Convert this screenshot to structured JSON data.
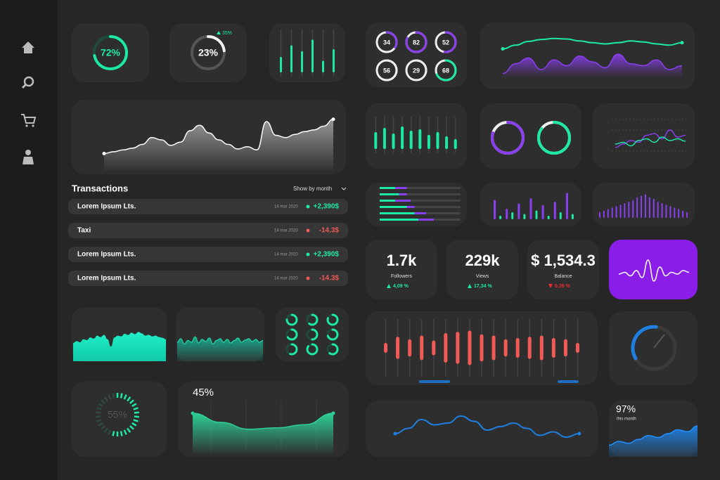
{
  "gauges": [
    {
      "value": 72,
      "label": "72%"
    },
    {
      "value": 23,
      "label": "23%",
      "change": {
        "value": 35,
        "label": "35%"
      }
    }
  ],
  "rings": [
    34,
    82,
    52,
    56,
    29,
    68
  ],
  "mini_bars": [
    40,
    70,
    55,
    85,
    30,
    60
  ],
  "top_wave": {
    "green": [
      30,
      45,
      60,
      68,
      72,
      70,
      62,
      55,
      50,
      55,
      62,
      58,
      50,
      45,
      55
    ],
    "purple": [
      10,
      35,
      50,
      20,
      45,
      30,
      55,
      40,
      25,
      60,
      35,
      30,
      45,
      20,
      30
    ]
  },
  "white_wave": [
    10,
    14,
    18,
    22,
    30,
    45,
    40,
    28,
    35,
    60,
    72,
    55,
    40,
    30,
    20,
    25,
    18,
    80,
    50,
    45,
    52,
    58,
    62,
    70,
    85
  ],
  "green_bars": [
    60,
    75,
    55,
    80,
    65,
    70,
    50,
    60,
    45,
    35
  ],
  "double_rings": [
    80,
    85
  ],
  "multi_line": {
    "green": [
      30,
      35,
      25,
      40,
      45,
      35,
      50,
      40,
      45,
      38
    ],
    "purple": [
      20,
      30,
      40,
      35,
      55,
      60,
      45,
      70,
      50,
      55
    ]
  },
  "transactions": {
    "title": "Transactions",
    "filter": "Show by month",
    "rows": [
      {
        "name": "Lorem Ipsum Lts.",
        "date": "14 mar 2020",
        "amount": "+2,390$",
        "color": "#1de9a6"
      },
      {
        "name": "Taxi",
        "date": "14 mar 2020",
        "amount": "-14.3$",
        "color": "#f25a55"
      },
      {
        "name": "Lorem Ipsum Lts.",
        "date": "14 mar 2020",
        "amount": "+2,390$",
        "color": "#1de9a6"
      },
      {
        "name": "Lorem Ipsum Lts.",
        "date": "14 mar 2020",
        "amount": "-14.3$",
        "color": "#f25a55"
      }
    ]
  },
  "h_bars": {
    "green": [
      20,
      25,
      20,
      35,
      45,
      50
    ],
    "purple": [
      15,
      10,
      20,
      10,
      15,
      20
    ]
  },
  "purple_bars": {
    "purple": [
      55,
      30,
      45,
      60,
      40,
      50,
      75
    ],
    "green": [
      10,
      20,
      15,
      25,
      10,
      20,
      15
    ]
  },
  "thin_bars": [
    20,
    25,
    30,
    35,
    40,
    45,
    50,
    55,
    60,
    70,
    75,
    80,
    70,
    65,
    55,
    50,
    45,
    40,
    35,
    30,
    25,
    20
  ],
  "stats": [
    {
      "value": "1.7k",
      "label": "Followers",
      "change": "4,09 %",
      "trend": "up",
      "color": "#1de9a6"
    },
    {
      "value": "229k",
      "label": "Views",
      "change": "17,34 %",
      "trend": "up",
      "color": "#1de9a6"
    },
    {
      "value": "$ 1,534.3",
      "label": "Balance",
      "change": "0,39 %",
      "trend": "down",
      "color": "#f02d2d"
    }
  ],
  "purple_wave": [
    40,
    45,
    35,
    50,
    30,
    80,
    20,
    60,
    35,
    45,
    40,
    50,
    45
  ],
  "green_area": [
    50,
    55,
    52,
    60,
    58,
    65,
    62,
    70,
    66,
    72,
    60,
    40,
    65,
    70,
    68,
    75,
    72,
    78,
    74,
    80,
    76,
    70,
    72,
    68,
    70,
    66,
    64,
    60
  ],
  "teal_area": [
    50,
    60,
    45,
    55,
    50,
    65,
    48,
    58,
    52,
    62,
    45,
    55,
    60,
    50,
    58,
    48,
    55,
    62,
    50,
    56,
    60,
    52,
    58,
    50,
    55
  ],
  "ring_grid": [
    75,
    60,
    80,
    65,
    50,
    70,
    55,
    85,
    60
  ],
  "red_candles": [
    20,
    45,
    35,
    50,
    30,
    60,
    65,
    70,
    55,
    50,
    35,
    40,
    45,
    50,
    40,
    35,
    20
  ],
  "blue_gauge": 35,
  "progress": {
    "value": 55,
    "label": "55%"
  },
  "area_45": {
    "label": "45%",
    "values": [
      80,
      60,
      45,
      48,
      55,
      80
    ]
  },
  "blue_wave": [
    30,
    45,
    70,
    55,
    60,
    80,
    65,
    40,
    50,
    60,
    45,
    25,
    35,
    20,
    30
  ],
  "area_97": {
    "label": "97%",
    "caption": "this month",
    "values": [
      30,
      40,
      35,
      45,
      55,
      50,
      60,
      70,
      65,
      80
    ]
  }
}
